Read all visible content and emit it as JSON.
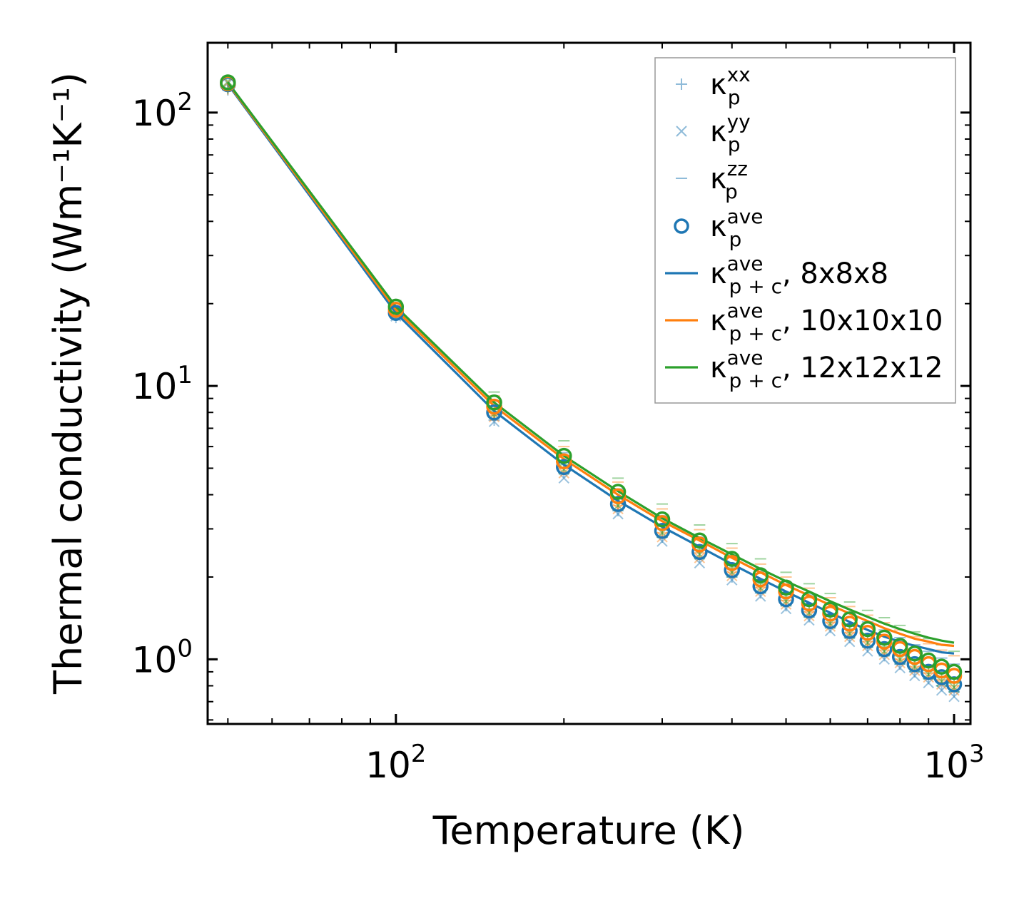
{
  "chart_data": {
    "type": "line",
    "xscale": "log",
    "yscale": "log",
    "xlabel": "Temperature (K)",
    "ylabel": "Thermal conductivity (Wm⁻¹K⁻¹)",
    "xlim": [
      46,
      1070
    ],
    "ylim": [
      0.58,
      180
    ],
    "x_ticks": [
      {
        "base": "10",
        "exp": "2"
      },
      {
        "base": "10",
        "exp": "3"
      }
    ],
    "y_ticks": [
      {
        "base": "10",
        "exp": "0"
      },
      {
        "base": "10",
        "exp": "1"
      },
      {
        "base": "10",
        "exp": "2"
      }
    ],
    "colors": {
      "blue": "#1f77b4",
      "orange": "#ff7f0e",
      "green": "#2ca02c"
    },
    "temperatures": [
      50,
      100,
      150,
      200,
      250,
      300,
      350,
      400,
      450,
      500,
      550,
      600,
      650,
      700,
      750,
      800,
      850,
      900,
      950,
      1000
    ],
    "meshes": [
      {
        "name": "8x8x8",
        "color": "#1f77b4",
        "kxx": [
          121,
          17.8,
          7.5,
          4.8,
          3.5,
          2.8,
          2.35,
          2.0,
          1.75,
          1.57,
          1.43,
          1.31,
          1.2,
          1.11,
          1.03,
          0.96,
          0.9,
          0.85,
          0.8,
          0.76
        ],
        "kyy": [
          128,
          18.0,
          7.4,
          4.6,
          3.4,
          2.7,
          2.25,
          1.95,
          1.7,
          1.53,
          1.39,
          1.27,
          1.16,
          1.07,
          1.0,
          0.93,
          0.87,
          0.82,
          0.77,
          0.73
        ],
        "kzz": [
          133,
          19.5,
          8.8,
          5.7,
          4.2,
          3.35,
          2.8,
          2.4,
          2.1,
          1.88,
          1.72,
          1.59,
          1.47,
          1.37,
          1.28,
          1.2,
          1.13,
          1.07,
          1.01,
          0.96
        ],
        "kave": [
          127,
          18.5,
          8.0,
          5.05,
          3.7,
          2.95,
          2.47,
          2.12,
          1.85,
          1.66,
          1.51,
          1.38,
          1.27,
          1.17,
          1.09,
          1.02,
          0.96,
          0.9,
          0.86,
          0.81
        ],
        "kpc": [
          127,
          18.5,
          8.1,
          5.15,
          3.8,
          3.05,
          2.58,
          2.23,
          1.97,
          1.77,
          1.61,
          1.48,
          1.37,
          1.28,
          1.21,
          1.16,
          1.12,
          1.09,
          1.06,
          1.05
        ]
      },
      {
        "name": "10x10x10",
        "color": "#ff7f0e",
        "kxx": [
          122,
          18.2,
          7.8,
          5.0,
          3.65,
          2.9,
          2.45,
          2.08,
          1.83,
          1.64,
          1.49,
          1.36,
          1.25,
          1.16,
          1.08,
          1.0,
          0.94,
          0.89,
          0.84,
          0.8
        ],
        "kyy": [
          129,
          18.4,
          7.7,
          4.8,
          3.55,
          2.8,
          2.35,
          2.02,
          1.77,
          1.59,
          1.44,
          1.32,
          1.21,
          1.12,
          1.04,
          0.97,
          0.91,
          0.86,
          0.81,
          0.77
        ],
        "kzz": [
          134,
          20.0,
          9.2,
          6.0,
          4.45,
          3.55,
          2.98,
          2.55,
          2.23,
          2.0,
          1.82,
          1.68,
          1.56,
          1.45,
          1.36,
          1.28,
          1.21,
          1.14,
          1.08,
          1.03
        ],
        "kave": [
          128,
          19.0,
          8.4,
          5.3,
          3.95,
          3.15,
          2.63,
          2.25,
          1.96,
          1.77,
          1.6,
          1.47,
          1.35,
          1.25,
          1.16,
          1.09,
          1.02,
          0.96,
          0.91,
          0.87
        ],
        "kpc": [
          128,
          19.0,
          8.45,
          5.4,
          4.0,
          3.2,
          2.72,
          2.35,
          2.08,
          1.87,
          1.71,
          1.58,
          1.47,
          1.38,
          1.3,
          1.24,
          1.19,
          1.16,
          1.13,
          1.12
        ]
      },
      {
        "name": "12x12x12",
        "color": "#2ca02c",
        "kxx": [
          123,
          18.5,
          8.0,
          5.15,
          3.78,
          3.0,
          2.52,
          2.16,
          1.89,
          1.69,
          1.53,
          1.4,
          1.29,
          1.19,
          1.11,
          1.03,
          0.97,
          0.91,
          0.86,
          0.82
        ],
        "kyy": [
          130,
          18.7,
          7.9,
          4.95,
          3.65,
          2.9,
          2.42,
          2.08,
          1.82,
          1.63,
          1.48,
          1.35,
          1.24,
          1.15,
          1.07,
          1.0,
          0.94,
          0.88,
          0.83,
          0.79
        ],
        "kzz": [
          135,
          20.5,
          9.5,
          6.3,
          4.6,
          3.7,
          3.1,
          2.65,
          2.33,
          2.08,
          1.89,
          1.74,
          1.62,
          1.51,
          1.42,
          1.33,
          1.26,
          1.19,
          1.13,
          1.07
        ],
        "kave": [
          129,
          19.5,
          8.7,
          5.55,
          4.1,
          3.25,
          2.72,
          2.33,
          2.03,
          1.83,
          1.66,
          1.52,
          1.4,
          1.29,
          1.2,
          1.12,
          1.05,
          0.99,
          0.94,
          0.9
        ],
        "kpc": [
          129,
          19.5,
          8.7,
          5.55,
          4.12,
          3.28,
          2.78,
          2.42,
          2.14,
          1.93,
          1.77,
          1.63,
          1.52,
          1.43,
          1.35,
          1.29,
          1.24,
          1.2,
          1.17,
          1.15
        ]
      }
    ],
    "legend": {
      "position": "upper right",
      "entries": [
        {
          "marker": "plus",
          "kappa": "κ",
          "sub": "p",
          "sup": "xx",
          "suffix": ""
        },
        {
          "marker": "cross",
          "kappa": "κ",
          "sub": "p",
          "sup": "yy",
          "suffix": ""
        },
        {
          "marker": "dash",
          "kappa": "κ",
          "sub": "p",
          "sup": "zz",
          "suffix": ""
        },
        {
          "marker": "circle",
          "kappa": "κ",
          "sub": "p",
          "sup": "ave",
          "suffix": ""
        },
        {
          "marker": "line-blue",
          "kappa": "κ",
          "sub": "p + c",
          "sup": "ave",
          "suffix": ", 8x8x8"
        },
        {
          "marker": "line-orange",
          "kappa": "κ",
          "sub": "p + c",
          "sup": "ave",
          "suffix": ", 10x10x10"
        },
        {
          "marker": "line-green",
          "kappa": "κ",
          "sub": "p + c",
          "sup": "ave",
          "suffix": ", 12x12x12"
        }
      ]
    }
  }
}
